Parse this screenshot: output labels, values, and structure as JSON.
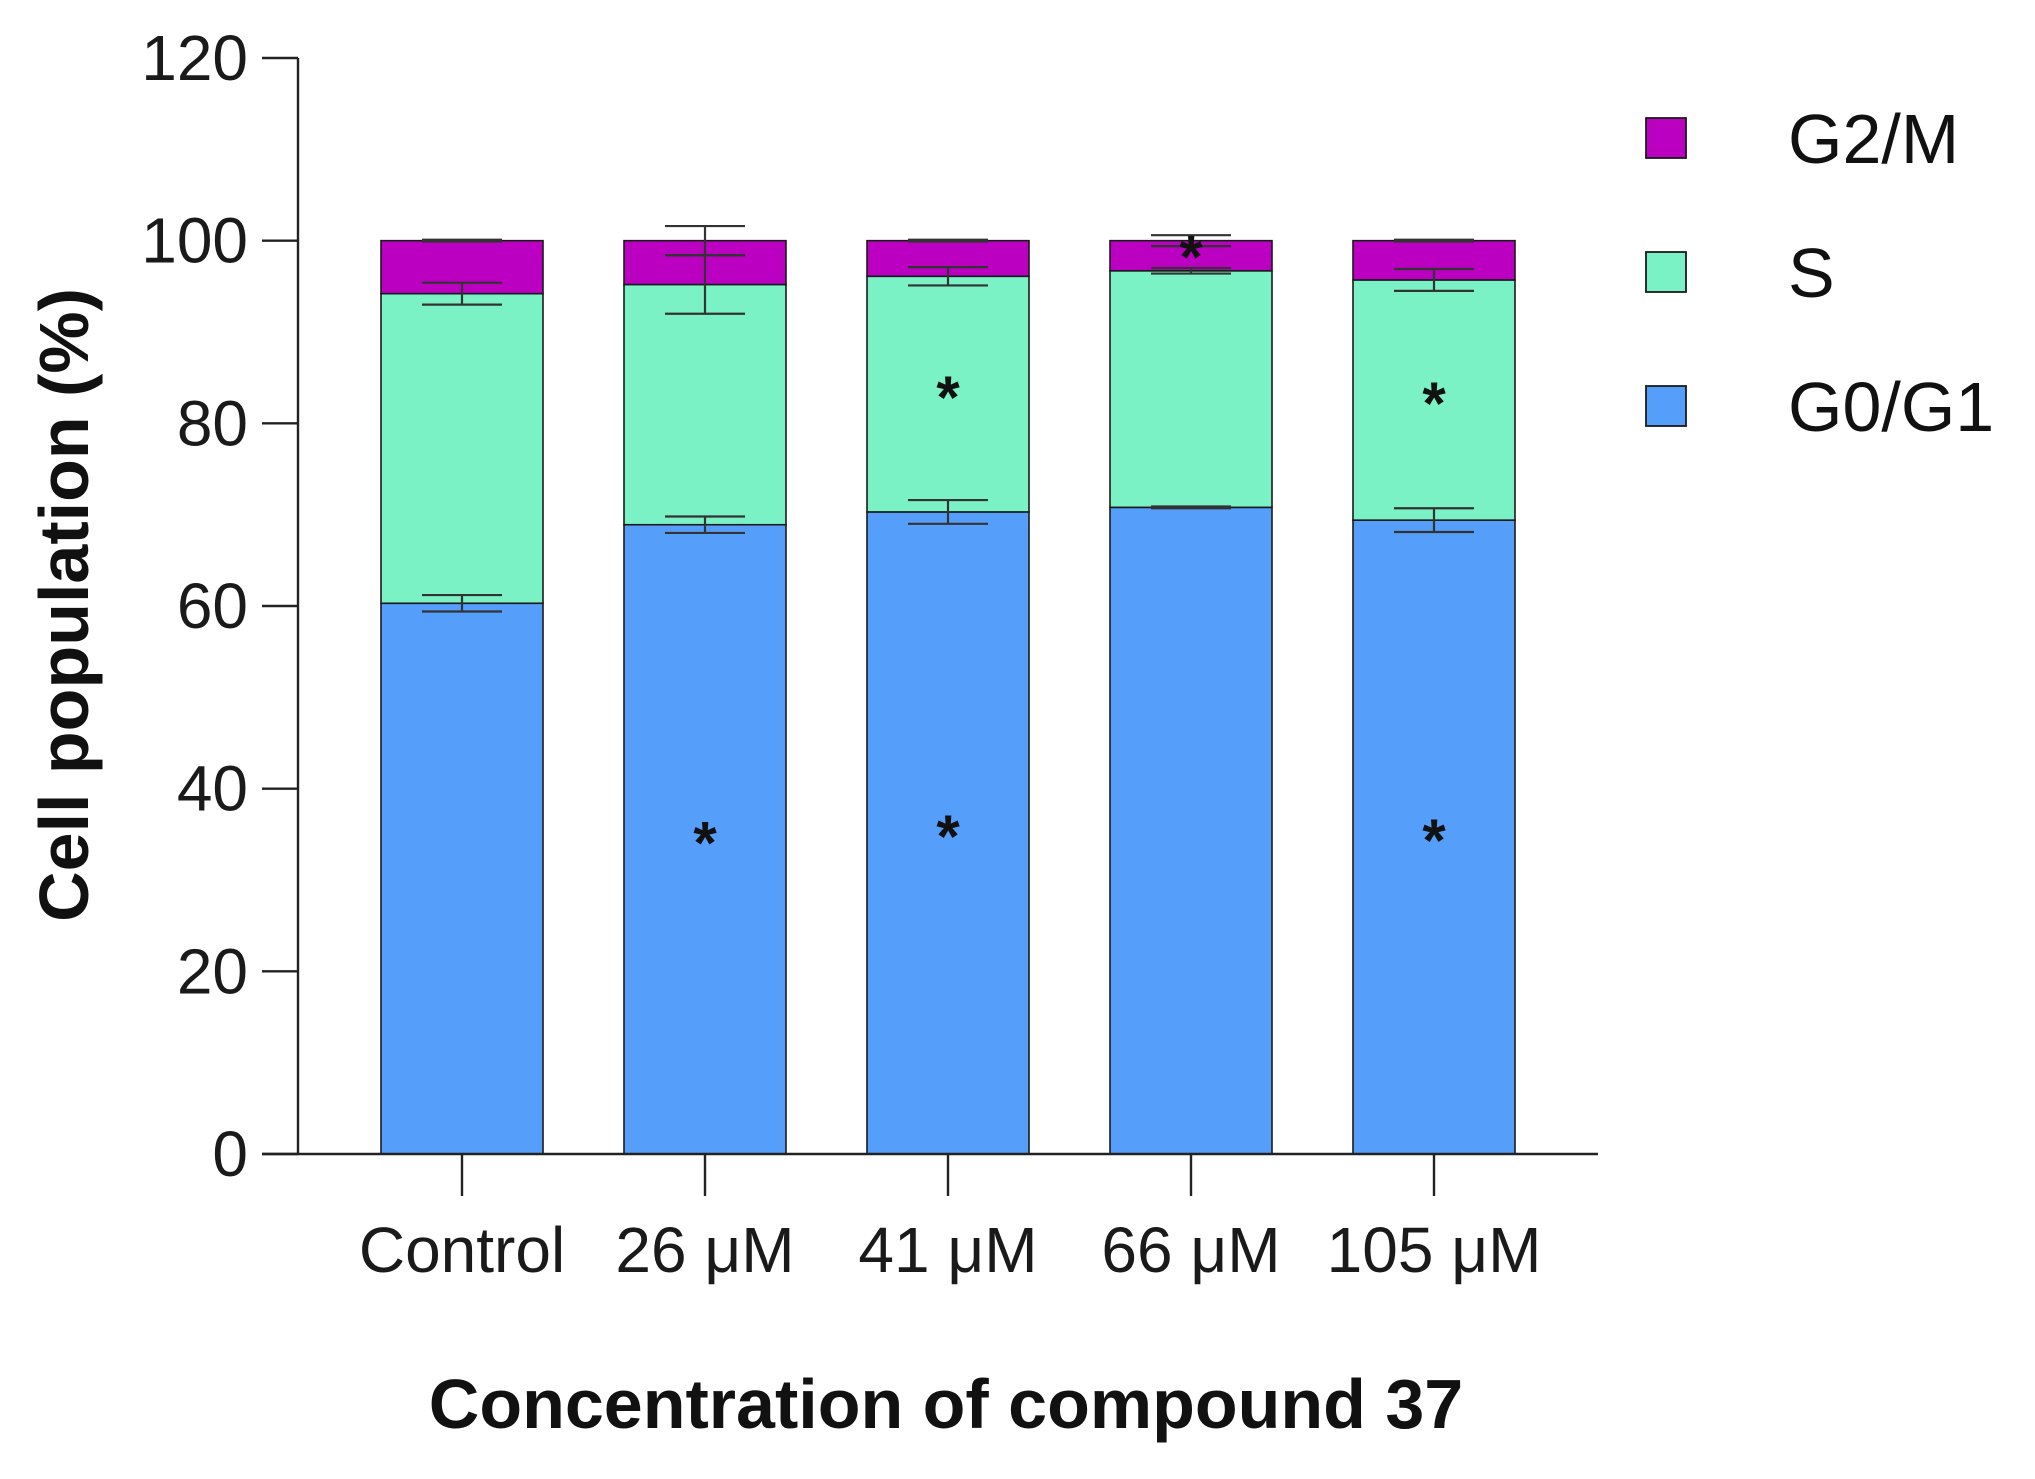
{
  "chart_data": {
    "type": "bar",
    "stacked": true,
    "title": "",
    "xlabel": "Concentration of compound 37",
    "ylabel": "Cell population (%)",
    "ylim": [
      0,
      120
    ],
    "yticks": [
      0,
      20,
      40,
      60,
      80,
      100,
      120
    ],
    "categories": [
      "Control",
      "26 μM",
      "41 μM",
      "66 μM",
      "105 μM"
    ],
    "series": [
      {
        "name": "G0/G1",
        "color": "#559ffa",
        "values": [
          60.3,
          68.9,
          70.3,
          70.8,
          69.4
        ],
        "errors": [
          0.9,
          0.9,
          1.3,
          0.1,
          1.3
        ],
        "significant": [
          false,
          true,
          true,
          false,
          true
        ]
      },
      {
        "name": "S",
        "color": "#7af2c6",
        "values": [
          33.9,
          26.3,
          25.8,
          25.9,
          26.3
        ],
        "errors": [
          1.2,
          3.2,
          1.0,
          0.3,
          1.2
        ],
        "significant": [
          false,
          false,
          true,
          false,
          true
        ]
      },
      {
        "name": "G2/M",
        "color": "#bb00c2",
        "values": [
          5.8,
          4.8,
          3.9,
          3.3,
          4.3
        ],
        "errors": [
          0.1,
          1.6,
          0.1,
          0.6,
          0.1
        ],
        "significant": [
          false,
          false,
          false,
          true,
          false
        ]
      }
    ],
    "legend": {
      "position": "top-right",
      "order": [
        "G2/M",
        "S",
        "G0/G1"
      ]
    },
    "significance_marker": "*"
  }
}
